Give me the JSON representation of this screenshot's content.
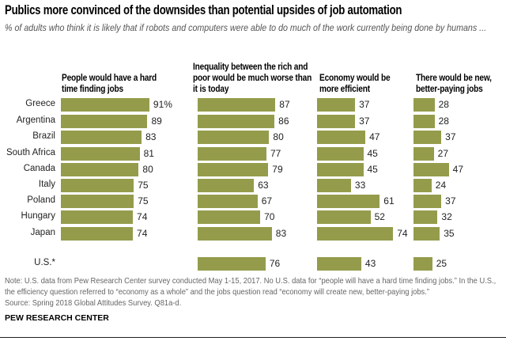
{
  "chart_data": {
    "type": "bar",
    "title": "Publics more convinced of the downsides than potential upsides of job automation",
    "subtitle": "% of adults who think it is likely that if robots and computers were able to do much of the work currently being done by humans ...",
    "categories": [
      "Greece",
      "Argentina",
      "Brazil",
      "South Africa",
      "Canada",
      "Italy",
      "Poland",
      "Hungary",
      "Japan",
      "U.S.*"
    ],
    "series": [
      {
        "name": "People would have a hard time finding jobs",
        "values": [
          91,
          89,
          83,
          81,
          80,
          75,
          75,
          74,
          74,
          null
        ]
      },
      {
        "name": "Inequality between the rich and poor would be much worse than it is today",
        "values": [
          87,
          86,
          80,
          77,
          79,
          63,
          67,
          70,
          83,
          76
        ]
      },
      {
        "name": "Economy would be more efficient",
        "values": [
          37,
          37,
          47,
          45,
          45,
          33,
          61,
          52,
          74,
          43
        ]
      },
      {
        "name": "There would be new, better-paying jobs",
        "values": [
          28,
          28,
          37,
          27,
          47,
          24,
          37,
          32,
          35,
          25
        ]
      }
    ],
    "first_value_suffix": "%",
    "bar_color": "#949c4b",
    "note": "Note: U.S. data from Pew Research Center survey conducted May 1-15, 2017. No U.S. data for “people will have a hard time finding jobs.” In the U.S., the efficiency question referred to “economy as a whole” and the jobs question read “economy will create new, better-paying jobs.”",
    "source": "Source: Spring 2018 Global Attitudes Survey. Q81a-d.",
    "credit": "PEW RESEARCH CENTER"
  }
}
